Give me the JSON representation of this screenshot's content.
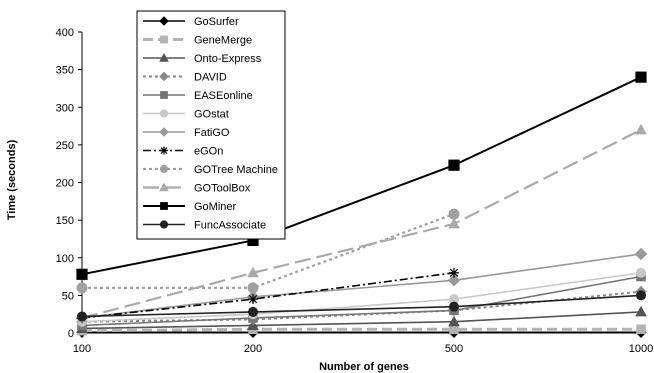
{
  "chart_data": {
    "type": "line",
    "title": "",
    "xlabel": "Number of genes",
    "ylabel": "Time (seconds)",
    "categories": [
      "100",
      "200",
      "500",
      "1000"
    ],
    "ylim": [
      0,
      400
    ],
    "yticks": [
      "0",
      "50",
      "100",
      "150",
      "200",
      "250",
      "300",
      "350",
      "400"
    ],
    "grid": false,
    "legend_position": "top-left",
    "series": [
      {
        "name": "GoSurfer",
        "values": [
          1,
          1,
          1,
          1
        ],
        "color": "#000000",
        "dash": "solid",
        "marker": "diamond"
      },
      {
        "name": "GeneMerge",
        "values": [
          3,
          5,
          5,
          5
        ],
        "color": "#b3b3b3",
        "dash": "dash",
        "marker": "square"
      },
      {
        "name": "Onto-Express",
        "values": [
          6,
          10,
          15,
          28
        ],
        "color": "#555555",
        "dash": "solid",
        "marker": "triangle"
      },
      {
        "name": "DAVID",
        "values": [
          15,
          18,
          30,
          55
        ],
        "color": "#888888",
        "dash": "dot",
        "marker": "diamond"
      },
      {
        "name": "EASEonline",
        "values": [
          10,
          20,
          30,
          75
        ],
        "color": "#777777",
        "dash": "solid",
        "marker": "square"
      },
      {
        "name": "GOstat",
        "values": [
          15,
          25,
          45,
          80
        ],
        "color": "#c8c8c8",
        "dash": "solid",
        "marker": "circle"
      },
      {
        "name": "FatiGO",
        "values": [
          20,
          48,
          70,
          105
        ],
        "color": "#999999",
        "dash": "solid",
        "marker": "diamond"
      },
      {
        "name": "eGOn",
        "values": [
          20,
          45,
          80,
          null
        ],
        "color": "#000000",
        "dash": "dashdot",
        "marker": "star"
      },
      {
        "name": "GOTree Machine",
        "values": [
          60,
          60,
          158,
          null
        ],
        "color": "#a0a0a0",
        "dash": "dot",
        "marker": "circle"
      },
      {
        "name": "GOToolBox",
        "values": [
          20,
          80,
          145,
          270
        ],
        "color": "#aaaaaa",
        "dash": "longdash",
        "marker": "triangle"
      },
      {
        "name": "GoMiner",
        "values": [
          78,
          123,
          223,
          340
        ],
        "color": "#000000",
        "dash": "solid",
        "marker": "square"
      },
      {
        "name": "FuncAssociate",
        "values": [
          22,
          28,
          35,
          50
        ],
        "color": "#222222",
        "dash": "solid",
        "marker": "circle"
      }
    ]
  }
}
